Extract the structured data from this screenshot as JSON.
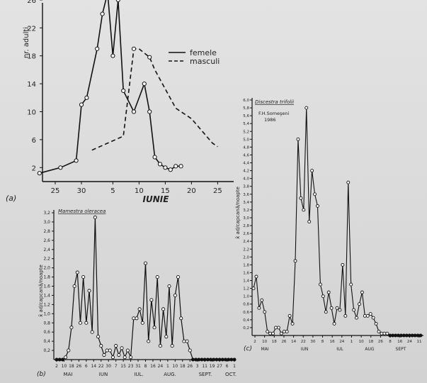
{
  "chart_data": [
    {
      "panel": "(a)",
      "type": "line",
      "ylabel": "nr. adulti",
      "xlabel": "IUNIE",
      "xticks": [
        "25",
        "30",
        "5",
        "10",
        "15",
        "20",
        "25"
      ],
      "yticks": [
        "2",
        "6",
        "10",
        "14",
        "18",
        "22",
        "26"
      ],
      "ylim": [
        0,
        27
      ],
      "legend": "top-right",
      "series": [
        {
          "name": "femele",
          "style": "solid",
          "x": [
            -8,
            -4,
            -1,
            0,
            1,
            3,
            4,
            5,
            6,
            7,
            8,
            10,
            12,
            13,
            14,
            15,
            16,
            17,
            18,
            19
          ],
          "y": [
            1.2,
            2,
            3,
            11,
            12,
            19,
            24,
            27,
            18,
            26,
            13,
            10,
            14,
            10,
            3.5,
            2.5,
            2,
            1.7,
            2.2,
            2.2
          ]
        },
        {
          "name": "masculi",
          "style": "dashed",
          "x": [
            2,
            8,
            10,
            11,
            13,
            14,
            18,
            21,
            25,
            26
          ],
          "y": [
            4.5,
            6.5,
            19,
            19,
            17.8,
            16,
            10.5,
            9,
            5.5,
            5
          ]
        }
      ]
    },
    {
      "panel": "(b)",
      "type": "line",
      "title": "Mamestra oleracea",
      "ylabel": "x̄ ad/capcană/noapte",
      "yticks": [
        "0,2",
        "0,4",
        "0,6",
        "0,8",
        "1,0",
        "1,2",
        "1,4",
        "1,6",
        "1,8",
        "2,0",
        "2,2",
        "2,4",
        "2,6",
        "2,8",
        "3,0",
        "3,2"
      ],
      "ylim": [
        0,
        3.2
      ],
      "xticks": [
        "2",
        "10",
        "18",
        "26",
        "6",
        "14",
        "22",
        "30",
        "7",
        "15",
        "23",
        "31",
        "8",
        "16",
        "24",
        "1",
        "10",
        "18",
        "26",
        "3",
        "11",
        "19",
        "27",
        "6",
        "1"
      ],
      "month_labels": [
        "MAI",
        "IUN",
        "IUL.",
        "AUG.",
        "SEPT.",
        "OCT."
      ],
      "x": [
        0,
        1,
        2,
        3,
        4,
        5,
        6,
        7,
        8,
        9,
        10,
        11,
        12,
        13,
        14,
        15,
        16,
        17,
        18,
        19,
        20,
        21,
        22,
        23,
        24,
        25,
        26,
        27,
        28,
        29,
        30,
        31,
        32,
        33,
        34,
        35,
        36,
        37,
        38,
        39,
        40,
        41,
        42,
        43,
        44,
        45,
        46,
        47,
        48,
        49,
        50,
        51,
        52,
        53,
        54,
        55,
        56,
        57,
        58,
        59,
        60
      ],
      "values": [
        0,
        0,
        0,
        0.05,
        0.2,
        0.7,
        1.6,
        1.9,
        0.8,
        1.8,
        0.8,
        1.5,
        0.6,
        3.1,
        0.5,
        0.3,
        0.1,
        0.2,
        0.2,
        0.05,
        0.3,
        0.1,
        0.25,
        0.05,
        0.2,
        0.05,
        0.9,
        0.9,
        1.1,
        0.8,
        2.1,
        0.4,
        1.3,
        0.7,
        1.8,
        0.3,
        1.1,
        0.5,
        1.6,
        0.3,
        1.4,
        1.8,
        0.9,
        0.4,
        0.4,
        0.2,
        0,
        0,
        0,
        0,
        0,
        0,
        0,
        0,
        0,
        0,
        0,
        0,
        0,
        0,
        0
      ]
    },
    {
      "panel": "(c)",
      "type": "line",
      "title": "Discestra trifolii",
      "annotation": "F.H.Someşeni 1986",
      "ylabel": "x̄ ad/capcană/noapte",
      "yticks": [
        "0,2",
        "0,4",
        "0,6",
        "0,8",
        "1,0",
        "1,2",
        "1,4",
        "1,6",
        "1,8",
        "2,0",
        "2,2",
        "2,4",
        "2,6",
        "2,8",
        "3,0",
        "3,2",
        "3,4",
        "3,6",
        "3,8",
        "4,0",
        "4,2",
        "4,4",
        "4,6",
        "4,8",
        "5,0",
        "5,2",
        "5,4",
        "5,6",
        "5,8",
        "6,0"
      ],
      "ylim": [
        0,
        6.0
      ],
      "xticks": [
        "2",
        "10",
        "18",
        "26",
        "14",
        "22",
        "30",
        "8",
        "16",
        "24",
        "1",
        "10",
        "18",
        "26",
        "8",
        "16",
        "24",
        "11"
      ],
      "month_labels": [
        "MAI",
        "IUN",
        "IUL",
        "AUG",
        "SEPT"
      ],
      "x": [
        0,
        1,
        2,
        3,
        4,
        5,
        6,
        7,
        8,
        9,
        10,
        11,
        12,
        13,
        14,
        15,
        16,
        17,
        18,
        19,
        20,
        21,
        22,
        23,
        24,
        25,
        26,
        27,
        28,
        29,
        30,
        31,
        32,
        33,
        34,
        35,
        36,
        37,
        38,
        39,
        40,
        41,
        42,
        43,
        44,
        45,
        46,
        47,
        48,
        49,
        50,
        51,
        52,
        53,
        54,
        55,
        56,
        57,
        58,
        59,
        60
      ],
      "values": [
        1.2,
        1.5,
        0.7,
        0.9,
        0.6,
        0.1,
        0.05,
        0.05,
        0.2,
        0.2,
        0.05,
        0.1,
        0.1,
        0.5,
        0.3,
        1.9,
        5.0,
        3.5,
        3.2,
        5.8,
        2.9,
        4.2,
        3.6,
        3.3,
        1.3,
        1.0,
        0.6,
        1.1,
        0.7,
        0.3,
        0.7,
        0.65,
        1.8,
        0.5,
        3.9,
        1.3,
        0.65,
        0.45,
        0.8,
        1.1,
        0.5,
        0.5,
        0.55,
        0.45,
        0.3,
        0.1,
        0.05,
        0.05,
        0.05,
        0,
        0,
        0,
        0,
        0,
        0,
        0,
        0,
        0,
        0,
        0,
        0
      ]
    }
  ]
}
